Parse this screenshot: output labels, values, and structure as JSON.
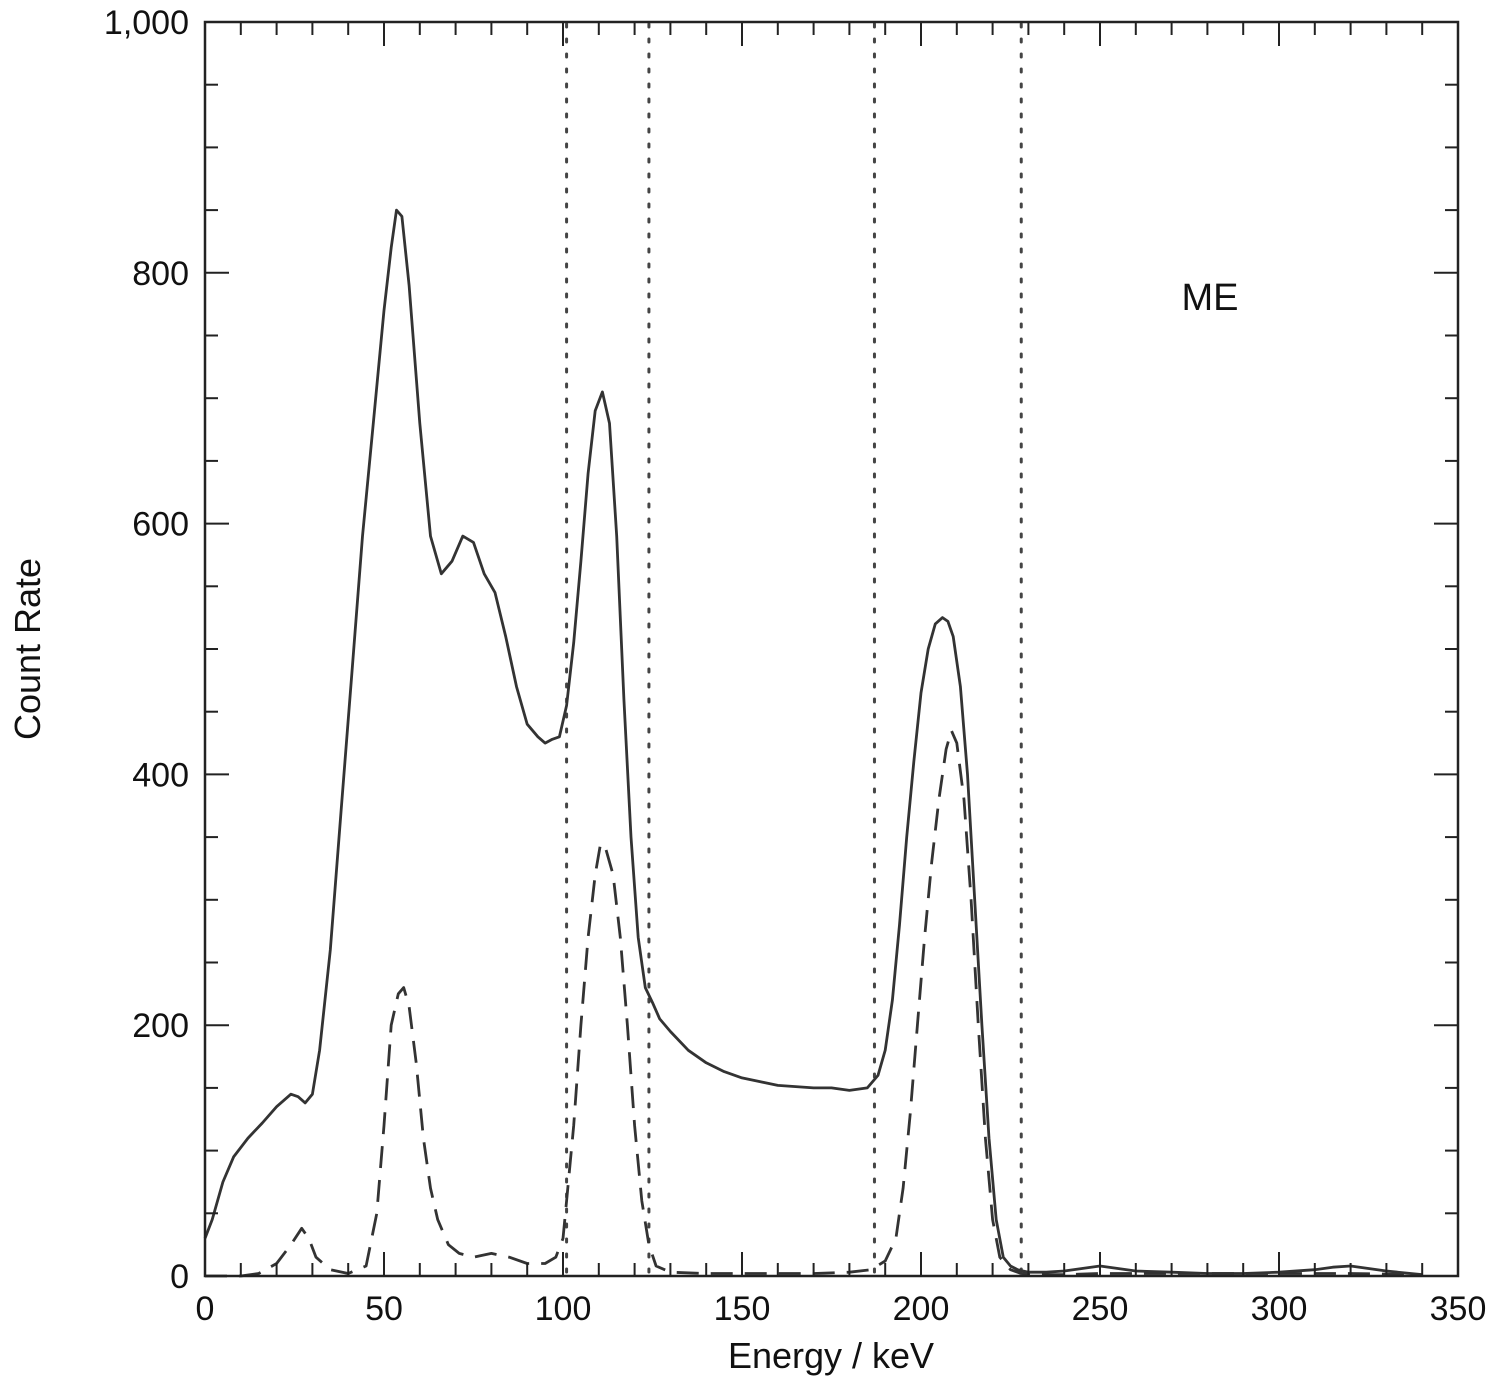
{
  "chart_data": {
    "type": "line",
    "title": "",
    "xlabel": "Energy / keV",
    "ylabel": "Count Rate",
    "xlim": [
      0,
      350
    ],
    "ylim": [
      0,
      1000
    ],
    "x_ticks": [
      0,
      50,
      100,
      150,
      200,
      250,
      300,
      350
    ],
    "x_tick_labels": [
      "0",
      "50",
      "100",
      "150",
      "200",
      "250",
      "300",
      "350"
    ],
    "y_ticks": [
      0,
      200,
      400,
      600,
      800,
      1000
    ],
    "y_tick_labels": [
      "0",
      "200",
      "400",
      "600",
      "800",
      "1,000"
    ],
    "annotation": "ME",
    "grid": false,
    "series": [
      {
        "style": "solid",
        "x": [
          0,
          2,
          5,
          8,
          12,
          16,
          20,
          24,
          26,
          28,
          30,
          32,
          35,
          38,
          41,
          44,
          47,
          50,
          52,
          53.5,
          55,
          57,
          60,
          63,
          66,
          69,
          72,
          75,
          78,
          81,
          84,
          87,
          90,
          93,
          95,
          97,
          99,
          101,
          103,
          105,
          107,
          109,
          111,
          113,
          115,
          117,
          119,
          121,
          123,
          125,
          127,
          130,
          135,
          140,
          145,
          150,
          155,
          160,
          165,
          170,
          175,
          180,
          185,
          188,
          190,
          192,
          194,
          196,
          198,
          200,
          202,
          204,
          206,
          207.5,
          209,
          211,
          213,
          215,
          217,
          219,
          221,
          223,
          225,
          227,
          230,
          235,
          240,
          245,
          250,
          255,
          260,
          270,
          280,
          290,
          300,
          310,
          315,
          320,
          325,
          330,
          340
        ],
        "y": [
          30,
          45,
          75,
          95,
          110,
          122,
          135,
          145,
          143,
          138,
          145,
          180,
          260,
          370,
          480,
          590,
          680,
          770,
          820,
          850,
          845,
          790,
          680,
          590,
          560,
          570,
          590,
          585,
          560,
          545,
          510,
          470,
          440,
          430,
          425,
          428,
          430,
          455,
          505,
          570,
          640,
          690,
          705,
          680,
          590,
          460,
          350,
          270,
          230,
          218,
          205,
          195,
          180,
          170,
          163,
          158,
          155,
          152,
          151,
          150,
          150,
          148,
          150,
          160,
          180,
          220,
          280,
          350,
          410,
          465,
          500,
          520,
          525,
          522,
          510,
          470,
          400,
          300,
          200,
          110,
          45,
          15,
          8,
          5,
          3,
          3,
          4,
          6,
          8,
          6,
          4,
          3,
          2,
          2,
          3,
          5,
          7,
          8,
          6,
          4,
          1
        ]
      },
      {
        "style": "dashed",
        "x": [
          0,
          10,
          15,
          20,
          24,
          27,
          29,
          31,
          35,
          40,
          45,
          48,
          50,
          52,
          54,
          55.5,
          57,
          59,
          61,
          63,
          65,
          68,
          71,
          75,
          80,
          85,
          90,
          95,
          98,
          100,
          101,
          103,
          105,
          107,
          109,
          110.5,
          112,
          114,
          116,
          118,
          120,
          122,
          124,
          126,
          130,
          140,
          150,
          160,
          170,
          180,
          186,
          190,
          193,
          195,
          197,
          199,
          201,
          203,
          205,
          207,
          208.5,
          210,
          212,
          214,
          216,
          218,
          220,
          222,
          225,
          228,
          232,
          240,
          250,
          260,
          270,
          280,
          300,
          320,
          340
        ],
        "y": [
          0,
          0,
          2,
          10,
          25,
          38,
          30,
          15,
          5,
          2,
          8,
          50,
          120,
          200,
          225,
          230,
          215,
          170,
          110,
          70,
          45,
          25,
          18,
          15,
          18,
          15,
          10,
          10,
          15,
          30,
          60,
          120,
          200,
          270,
          320,
          345,
          340,
          320,
          270,
          200,
          120,
          60,
          25,
          8,
          3,
          2,
          2,
          2,
          2,
          3,
          5,
          12,
          30,
          70,
          130,
          200,
          270,
          330,
          380,
          420,
          435,
          425,
          380,
          300,
          200,
          110,
          45,
          15,
          5,
          2,
          1,
          1,
          2,
          2,
          2,
          2,
          2,
          2,
          1
        ]
      }
    ],
    "vertical_lines": [
      {
        "style": "dotted",
        "x": 101
      },
      {
        "style": "dotted",
        "x": 124
      },
      {
        "style": "dotted",
        "x": 187
      },
      {
        "style": "dotted",
        "x": 228
      }
    ]
  }
}
